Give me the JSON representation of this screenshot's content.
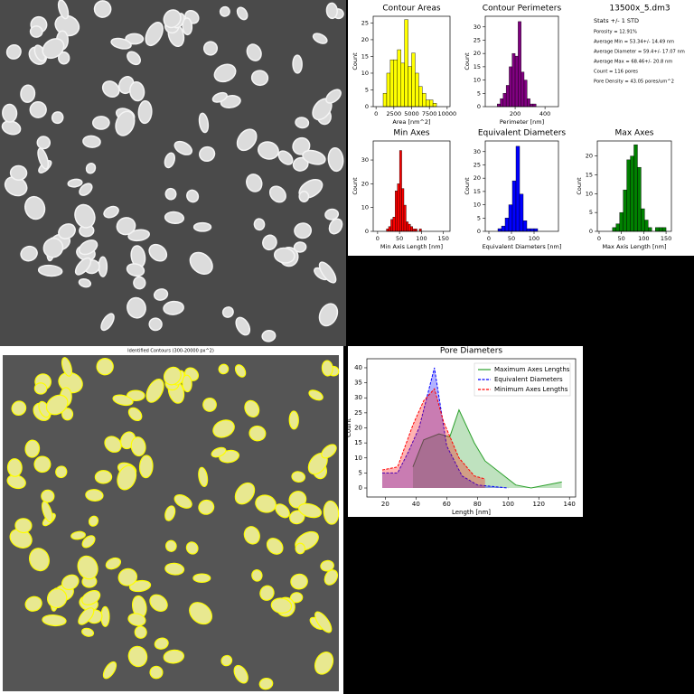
{
  "chart_data": [
    {
      "type": "histogram",
      "title": "Contour Areas",
      "xlabel": "Area [nm^2]",
      "ylabel": "Count",
      "color": "#ffff00",
      "bins": [
        1000,
        1500,
        2000,
        2500,
        3000,
        3500,
        4000,
        4500,
        5000,
        5500,
        6000,
        6500,
        7000,
        7500,
        8000,
        8500
      ],
      "values": [
        4,
        10,
        14,
        14,
        17,
        13,
        26,
        12,
        16,
        10,
        6,
        4,
        2,
        2,
        1
      ],
      "xlim": [
        -400,
        10400
      ],
      "xticks": [
        0,
        2500,
        5000,
        7500,
        10000
      ],
      "ylim": [
        0,
        27
      ],
      "yticks": [
        0,
        5,
        10,
        15,
        20,
        25
      ]
    },
    {
      "type": "histogram",
      "title": "Contour Perimeters",
      "xlabel": "Perimeter [nm]",
      "ylabel": "Count",
      "color": "#800080",
      "bins": [
        80,
        100,
        120,
        140,
        160,
        180,
        200,
        220,
        240,
        260,
        280,
        300,
        320,
        340
      ],
      "values": [
        1,
        3,
        5,
        8,
        15,
        20,
        19,
        32,
        13,
        10,
        3,
        1,
        1
      ],
      "xlim": [
        0,
        490
      ],
      "xticks": [
        200,
        400
      ],
      "ylim": [
        0,
        34
      ],
      "yticks": [
        0,
        5,
        10,
        15,
        20,
        25,
        30
      ]
    },
    {
      "type": "histogram",
      "title": "Min Axes",
      "xlabel": "Min Axis Length [nm]",
      "ylabel": "Count",
      "color": "#ff0000",
      "bins": [
        20,
        25,
        30,
        35,
        40,
        45,
        50,
        55,
        60,
        65,
        70,
        75,
        80,
        85,
        90,
        95,
        100
      ],
      "values": [
        1,
        2,
        5,
        6,
        17,
        20,
        34,
        18,
        11,
        4,
        3,
        2,
        1,
        1,
        0,
        1
      ],
      "xlim": [
        -10,
        165
      ],
      "xticks": [
        0,
        50,
        100,
        150
      ],
      "ylim": [
        0,
        38
      ],
      "yticks": [
        0,
        10,
        20,
        30
      ]
    },
    {
      "type": "histogram",
      "title": "Equivalent Diameters",
      "xlabel": "Equivalent Diameters [nm]",
      "ylabel": "Count",
      "color": "#0000ff",
      "bins": [
        20,
        28,
        36,
        44,
        52,
        60,
        68,
        76,
        84,
        92,
        100,
        108
      ],
      "values": [
        1,
        2,
        5,
        10,
        19,
        32,
        14,
        4,
        1,
        1,
        1
      ],
      "xlim": [
        -8,
        154
      ],
      "xticks": [
        0,
        50,
        100
      ],
      "ylim": [
        0,
        34
      ],
      "yticks": [
        0,
        5,
        10,
        15,
        20,
        25,
        30
      ]
    },
    {
      "type": "histogram",
      "title": "Max Axes",
      "xlabel": "Max Axis Length [nm]",
      "ylabel": "Count",
      "color": "#008000",
      "bins": [
        30,
        38,
        46,
        54,
        62,
        70,
        78,
        86,
        94,
        102,
        110,
        118,
        126,
        134,
        142,
        150
      ],
      "values": [
        1,
        2,
        5,
        11,
        19,
        20,
        23,
        17,
        6,
        3,
        1,
        0,
        1,
        1,
        1
      ],
      "xlim": [
        -4,
        162
      ],
      "xticks": [
        0,
        50,
        100,
        150
      ],
      "ylim": [
        0,
        24
      ],
      "yticks": [
        0,
        5,
        10,
        15,
        20
      ]
    },
    {
      "type": "area",
      "title": "Pore Diameters",
      "xlabel": "Length [nm]",
      "ylabel": "Count",
      "legend": "upper right",
      "series": [
        {
          "name": "Maximum Axes Lengths",
          "color": "#2ca02c",
          "dash": false,
          "x": [
            38,
            45,
            55,
            62,
            68,
            78,
            85,
            95,
            105,
            115,
            135
          ],
          "values": [
            7,
            16,
            18,
            17,
            26,
            15,
            9,
            5,
            1,
            0,
            2
          ]
        },
        {
          "name": "Equivalent Diameters",
          "color": "#0000ff",
          "dash": true,
          "x": [
            18,
            28,
            35,
            42,
            52,
            60,
            70,
            80,
            100
          ],
          "values": [
            5,
            5,
            12,
            20,
            40,
            14,
            4,
            1,
            0
          ]
        },
        {
          "name": "Minimum Axes Lengths",
          "color": "#ff0000",
          "dash": true,
          "x": [
            18,
            28,
            38,
            45,
            52,
            58,
            68,
            78,
            85
          ],
          "values": [
            6,
            7,
            21,
            29,
            33,
            22,
            10,
            4,
            3
          ]
        }
      ],
      "xlim": [
        8,
        144
      ],
      "xticks": [
        20,
        40,
        60,
        80,
        100,
        120,
        140
      ],
      "ylim": [
        -3,
        43
      ],
      "yticks": [
        0,
        5,
        10,
        15,
        20,
        25,
        30,
        35,
        40
      ]
    }
  ],
  "stats": {
    "title": "13500x_5.dm3",
    "heading": "Stats +/- 1 STD",
    "lines": [
      "Porosity  = 12.91%",
      "Average Min = 53.34+/- 14.49 nm",
      "Average Diameter = 59.4+/- 17.07 nm",
      "Average Max = 68.46+/- 20.8 nm",
      "Count = 116 pores",
      "Pore Density = 43.05 pores/um^2"
    ]
  },
  "image_title": "Identified Contours (300-20000 px^2)"
}
